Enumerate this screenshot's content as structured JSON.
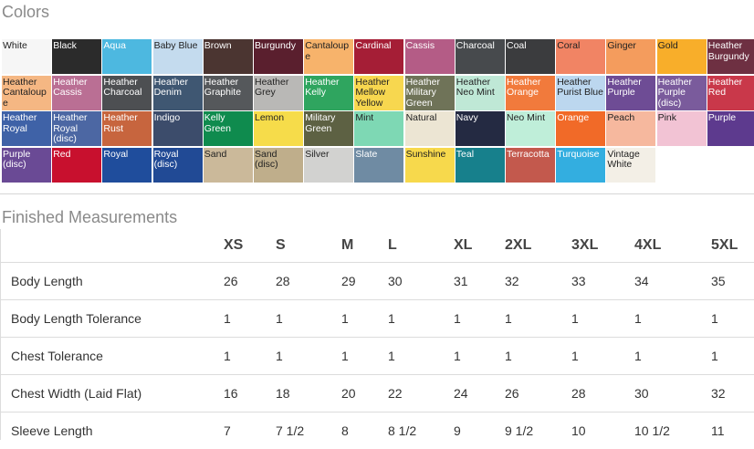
{
  "colors_section": {
    "title": "Colors",
    "swatches": [
      {
        "name": "White",
        "bg": "#f6f6f6",
        "fg": "#222222"
      },
      {
        "name": "Black",
        "bg": "#2b2b2b",
        "fg": "#ffffff"
      },
      {
        "name": "Aqua",
        "bg": "#4db8e0",
        "fg": "#ffffff"
      },
      {
        "name": "Baby Blue",
        "bg": "#c4dbee",
        "fg": "#222222"
      },
      {
        "name": "Brown",
        "bg": "#4b3531",
        "fg": "#ffffff"
      },
      {
        "name": "Burgundy",
        "bg": "#5a1f2e",
        "fg": "#ffffff"
      },
      {
        "name": "Cantaloupe",
        "bg": "#f7b36b",
        "fg": "#222222"
      },
      {
        "name": "Cardinal",
        "bg": "#a51e36",
        "fg": "#ffffff"
      },
      {
        "name": "Cassis",
        "bg": "#b45c86",
        "fg": "#ffffff"
      },
      {
        "name": "Charcoal",
        "bg": "#474a4d",
        "fg": "#ffffff"
      },
      {
        "name": "Coal",
        "bg": "#3b3c3e",
        "fg": "#ffffff"
      },
      {
        "name": "Coral",
        "bg": "#f18464",
        "fg": "#222222"
      },
      {
        "name": "Ginger",
        "bg": "#f49c5d",
        "fg": "#222222"
      },
      {
        "name": "Gold",
        "bg": "#f8ae2a",
        "fg": "#222222"
      },
      {
        "name": "Heather Burgundy",
        "bg": "#6e3042",
        "fg": "#ffffff"
      },
      {
        "name": "Heather Cantaloupe",
        "bg": "#f5b783",
        "fg": "#222222"
      },
      {
        "name": "Heather Cassis",
        "bg": "#ba6f94",
        "fg": "#ffffff"
      },
      {
        "name": "Heather Charcoal",
        "bg": "#4d4f52",
        "fg": "#ffffff"
      },
      {
        "name": "Heather Denim",
        "bg": "#3f5772",
        "fg": "#ffffff"
      },
      {
        "name": "Heather Graphite",
        "bg": "#55585b",
        "fg": "#ffffff"
      },
      {
        "name": "Heather Grey",
        "bg": "#b9b8b6",
        "fg": "#222222"
      },
      {
        "name": "Heather Kelly",
        "bg": "#2fa55f",
        "fg": "#ffffff"
      },
      {
        "name": "Heather Mellow Yellow",
        "bg": "#f7d74f",
        "fg": "#222222"
      },
      {
        "name": "Heather Military Green",
        "bg": "#6f7358",
        "fg": "#ffffff"
      },
      {
        "name": "Heather Neo Mint",
        "bg": "#bfe8d6",
        "fg": "#222222"
      },
      {
        "name": "Heather Orange",
        "bg": "#f17a3c",
        "fg": "#ffffff"
      },
      {
        "name": "Heather Purist Blue",
        "bg": "#bcd7ef",
        "fg": "#222222"
      },
      {
        "name": "Heather Purple",
        "bg": "#6e4c95",
        "fg": "#ffffff"
      },
      {
        "name": "Heather Purple (disc)",
        "bg": "#7a5b9c",
        "fg": "#ffffff"
      },
      {
        "name": "Heather Red",
        "bg": "#c9384a",
        "fg": "#ffffff"
      },
      {
        "name": "Heather Royal",
        "bg": "#3f62a7",
        "fg": "#ffffff"
      },
      {
        "name": "Heather Royal (disc)",
        "bg": "#4c67a3",
        "fg": "#ffffff"
      },
      {
        "name": "Heather Rust",
        "bg": "#c7653e",
        "fg": "#ffffff"
      },
      {
        "name": "Indigo",
        "bg": "#3c4c6b",
        "fg": "#ffffff"
      },
      {
        "name": "Kelly Green",
        "bg": "#0f8b4e",
        "fg": "#ffffff"
      },
      {
        "name": "Lemon",
        "bg": "#f6dc4a",
        "fg": "#222222"
      },
      {
        "name": "Military Green",
        "bg": "#5d6143",
        "fg": "#ffffff"
      },
      {
        "name": "Mint",
        "bg": "#7ed8b4",
        "fg": "#222222"
      },
      {
        "name": "Natural",
        "bg": "#ece5d3",
        "fg": "#222222"
      },
      {
        "name": "Navy",
        "bg": "#242a42",
        "fg": "#ffffff"
      },
      {
        "name": "Neo Mint",
        "bg": "#bfeed9",
        "fg": "#222222"
      },
      {
        "name": "Orange",
        "bg": "#f16a28",
        "fg": "#ffffff"
      },
      {
        "name": "Peach",
        "bg": "#f6b89e",
        "fg": "#222222"
      },
      {
        "name": "Pink",
        "bg": "#f2c3d4",
        "fg": "#222222"
      },
      {
        "name": "Purple",
        "bg": "#5d3a8e",
        "fg": "#ffffff"
      },
      {
        "name": "Purple (disc)",
        "bg": "#6a4a95",
        "fg": "#ffffff"
      },
      {
        "name": "Red",
        "bg": "#c8102e",
        "fg": "#ffffff"
      },
      {
        "name": "Royal",
        "bg": "#1f4d9c",
        "fg": "#ffffff"
      },
      {
        "name": "Royal (disc)",
        "bg": "#214a95",
        "fg": "#ffffff"
      },
      {
        "name": "Sand",
        "bg": "#cbb99a",
        "fg": "#222222"
      },
      {
        "name": "Sand (disc)",
        "bg": "#bfae8b",
        "fg": "#222222"
      },
      {
        "name": "Silver",
        "bg": "#d2d2d0",
        "fg": "#222222"
      },
      {
        "name": "Slate",
        "bg": "#6f8ba3",
        "fg": "#ffffff"
      },
      {
        "name": "Sunshine",
        "bg": "#f7d94c",
        "fg": "#222222"
      },
      {
        "name": "Teal",
        "bg": "#17808c",
        "fg": "#ffffff"
      },
      {
        "name": "Terracotta",
        "bg": "#c3594d",
        "fg": "#ffffff"
      },
      {
        "name": "Turquoise",
        "bg": "#33aee0",
        "fg": "#ffffff"
      },
      {
        "name": "Vintage White",
        "bg": "#f3efe6",
        "fg": "#222222"
      }
    ]
  },
  "measurements_section": {
    "title": "Finished Measurements",
    "sizes": [
      "XS",
      "S",
      "M",
      "L",
      "XL",
      "2XL",
      "3XL",
      "4XL",
      "5XL"
    ],
    "rows": [
      {
        "label": "Body Length",
        "values": [
          "26",
          "28",
          "29",
          "30",
          "31",
          "32",
          "33",
          "34",
          "35"
        ]
      },
      {
        "label": "Body Length Tolerance",
        "values": [
          "1",
          "1",
          "1",
          "1",
          "1",
          "1",
          "1",
          "1",
          "1"
        ]
      },
      {
        "label": "Chest Tolerance",
        "values": [
          "1",
          "1",
          "1",
          "1",
          "1",
          "1",
          "1",
          "1",
          "1"
        ]
      },
      {
        "label": "Chest Width (Laid Flat)",
        "values": [
          "16",
          "18",
          "20",
          "22",
          "24",
          "26",
          "28",
          "30",
          "32"
        ]
      },
      {
        "label": "Sleeve Length",
        "values": [
          "7",
          "7 1/2",
          "8",
          "8 1/2",
          "9",
          "9 1/2",
          "10",
          "10 1/2",
          "11"
        ]
      }
    ]
  }
}
